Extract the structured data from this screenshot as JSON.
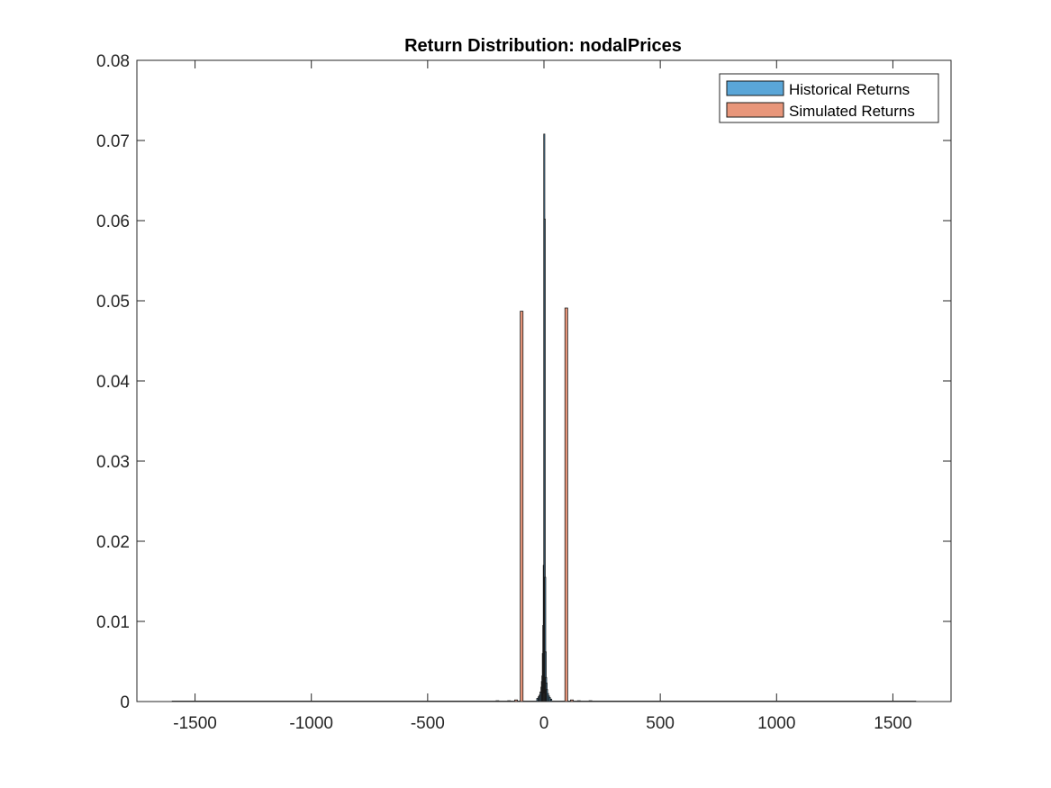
{
  "chart_data": {
    "type": "bar",
    "title": "Return Distribution: nodalPrices",
    "xlabel": "",
    "ylabel": "",
    "xlim": [
      -1750,
      1750
    ],
    "ylim": [
      0,
      0.08
    ],
    "xticks": [
      -1500,
      -1000,
      -500,
      0,
      500,
      1000,
      1500
    ],
    "xtick_labels": [
      "-1500",
      "-1000",
      "-500",
      "0",
      "500",
      "1000",
      "1500"
    ],
    "yticks": [
      0,
      0.01,
      0.02,
      0.03,
      0.04,
      0.05,
      0.06,
      0.07,
      0.08
    ],
    "ytick_labels": [
      "0",
      "0.01",
      "0.02",
      "0.03",
      "0.04",
      "0.05",
      "0.06",
      "0.07",
      "0.08"
    ],
    "grid": false,
    "legend_position": "top-right",
    "series": [
      {
        "name": "Historical Returns",
        "color": "#5aa6d8",
        "bin_width": 2,
        "x": [
          -30,
          -24,
          -20,
          -16,
          -12,
          -10,
          -8,
          -6,
          -4,
          -2,
          0,
          2,
          4,
          6,
          8,
          10,
          12,
          16,
          20,
          24,
          30
        ],
        "values": [
          0.0004,
          0.0006,
          0.0008,
          0.0012,
          0.0018,
          0.0025,
          0.0032,
          0.006,
          0.0095,
          0.017,
          0.0708,
          0.0602,
          0.0155,
          0.0062,
          0.003,
          0.0023,
          0.0015,
          0.001,
          0.0007,
          0.0005,
          0.0003
        ]
      },
      {
        "name": "Simulated Returns",
        "color": "#e8967a",
        "bin_width": 12,
        "x": [
          -200,
          -150,
          -120,
          -96,
          96,
          120,
          150,
          200
        ],
        "values": [
          0.0001,
          0.0001,
          0.0002,
          0.0487,
          0.0491,
          0.0002,
          0.0001,
          0.0001
        ]
      }
    ]
  }
}
